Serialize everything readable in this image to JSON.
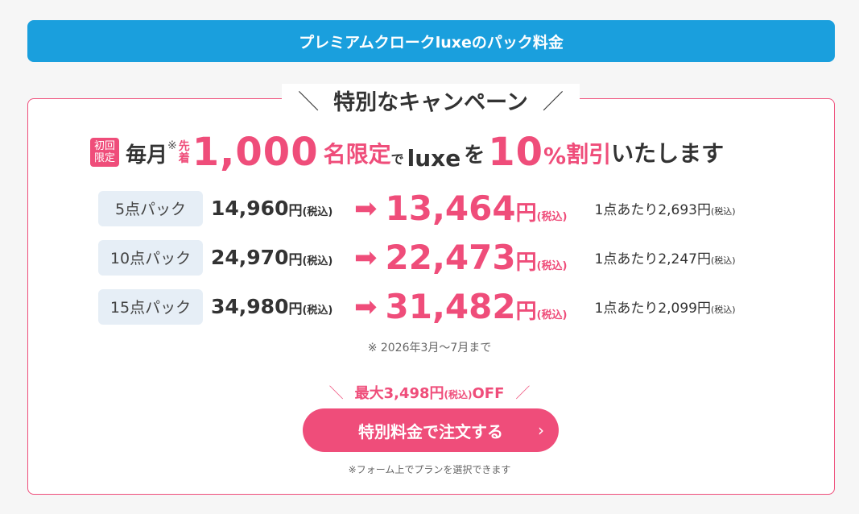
{
  "header": {
    "title": "プレミアムクロークluxeのパック料金"
  },
  "campaign": {
    "title": "特別なキャンペーン",
    "slash_left": "＼",
    "slash_right": "／"
  },
  "lead": {
    "badge_line1": "初回",
    "badge_line2": "限定",
    "monthly": "毎月",
    "kome": "※",
    "first1": "先",
    "first2": "着",
    "count": "1,000",
    "limit": "名限定",
    "de": "で",
    "luxe": "luxe",
    "wo": "を",
    "pct": "10",
    "pct_sign": "%",
    "discount": "割引",
    "rest": "いたします"
  },
  "rows": [
    {
      "pack": "5点パック",
      "orig": "14,960",
      "new": "13,464",
      "per": "1点あたり2,693円"
    },
    {
      "pack": "10点パック",
      "orig": "24,970",
      "new": "22,473",
      "per": "1点あたり2,247円"
    },
    {
      "pack": "15点パック",
      "orig": "34,980",
      "new": "31,482",
      "per": "1点あたり2,099円"
    }
  ],
  "labels": {
    "yen": "円",
    "tax": "(税込)"
  },
  "period_note": "※ 2026年3月〜7月まで",
  "off": {
    "text": "最大3,498円",
    "tax": "(税込)",
    "off": "OFF"
  },
  "cta": {
    "label": "特別料金で注文する",
    "chevron": "›"
  },
  "form_note": "※フォーム上でプランを選択できます",
  "colors": {
    "accent": "#ef4d7a",
    "header": "#1a9fdd"
  }
}
